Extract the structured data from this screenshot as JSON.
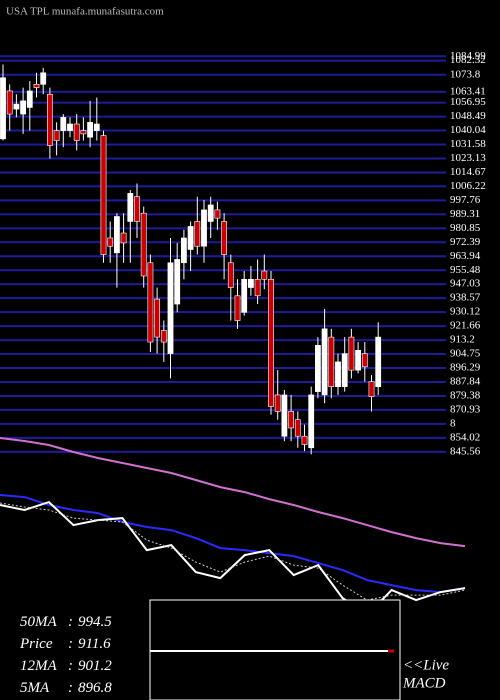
{
  "header": "USA TPL munafa.munafasutra.com",
  "chart_data": [
    {
      "type": "candlestick",
      "open": [
        1035,
        1064,
        1053,
        1050,
        1054,
        1068,
        1068,
        1062,
        1040,
        1040,
        1040,
        1044,
        1040,
        1036,
        1040,
        1037,
        975,
        966,
        978,
        985,
        1000,
        990,
        960,
        938,
        919,
        905,
        935,
        960,
        968,
        985,
        970,
        985,
        992,
        985,
        960,
        940,
        930,
        945,
        950,
        955,
        950,
        880,
        855,
        870,
        865,
        855,
        848,
        882,
        880,
        915,
        885,
        885,
        915,
        895,
        905,
        888,
        885
      ],
      "high": [
        1080,
        1068,
        1062,
        1066,
        1070,
        1075,
        1078,
        1066,
        1045,
        1050,
        1048,
        1050,
        1048,
        1058,
        1060,
        1040,
        985,
        990,
        990,
        1004,
        1008,
        994,
        965,
        945,
        925,
        975,
        972,
        980,
        985,
        1000,
        998,
        1000,
        997,
        990,
        965,
        950,
        955,
        958,
        962,
        965,
        955,
        895,
        883,
        880,
        870,
        862,
        885,
        915,
        932,
        920,
        905,
        915,
        920,
        912,
        912,
        892,
        924
      ],
      "low": [
        1034,
        1040,
        1048,
        1038,
        1040,
        1060,
        1062,
        1023,
        1025,
        1030,
        1036,
        1028,
        1034,
        1030,
        1034,
        960,
        960,
        945,
        960,
        960,
        975,
        945,
        906,
        905,
        900,
        890,
        930,
        950,
        955,
        965,
        960,
        975,
        980,
        950,
        925,
        920,
        928,
        940,
        935,
        944,
        868,
        865,
        852,
        852,
        848,
        846,
        844,
        878,
        875,
        878,
        880,
        882,
        890,
        893,
        888,
        870,
        880
      ],
      "close": [
        1072,
        1050,
        1056,
        1058,
        1064,
        1066,
        1075,
        1031,
        1034,
        1048,
        1044,
        1034,
        1038,
        1045,
        1044,
        965,
        970,
        988,
        972,
        1002,
        985,
        952,
        912,
        915,
        912,
        960,
        962,
        975,
        982,
        970,
        992,
        995,
        987,
        965,
        945,
        925,
        950,
        950,
        940,
        950,
        873,
        870,
        880,
        860,
        855,
        850,
        880,
        910,
        920,
        885,
        900,
        905,
        895,
        907,
        897,
        879,
        915
      ],
      "colors": {
        "up": "#ffffff",
        "down": "#cc0000"
      },
      "grid_color": "#1c1c9c",
      "grid": true,
      "ylim": [
        840,
        1090
      ],
      "yticks": [
        1084.99,
        1082.32,
        1073.8,
        1063.41,
        1056.95,
        1048.49,
        1040.04,
        1031.58,
        1023.13,
        1014.67,
        1006.22,
        997.76,
        989.31,
        980.85,
        972.39,
        963.94,
        955.48,
        947.03,
        938.57,
        930.12,
        921.66,
        913.2,
        904.75,
        896.29,
        887.84,
        879.38,
        870.93,
        {
          "value": 862.47,
          "label": "8"
        },
        854.02,
        845.56
      ]
    },
    {
      "type": "line",
      "ylim": [
        700,
        1220
      ],
      "series": [
        {
          "color": "#d070d0",
          "style": "solid",
          "values": [
            1204.5,
            1198.6,
            1190.9,
            1177.3,
            1165.6,
            1155.9,
            1146.2,
            1136.5,
            1122.9,
            1109.3,
            1099.6,
            1086,
            1074.4,
            1060.8,
            1049.1,
            1035.5,
            1021.9,
            1010.3,
            1000.6,
            994.8
          ]
        },
        {
          "color": "#2a2aff",
          "style": "solid",
          "values": [
            1093.8,
            1089.9,
            1074.4,
            1064.7,
            1058.8,
            1041.4,
            1031.7,
            1025.8,
            1010.3,
            990.9,
            987,
            981.2,
            975.3,
            961.7,
            948.2,
            928.7,
            919,
            909.3,
            905.4,
            913.2
          ]
        },
        {
          "color": "#ffffff",
          "style": "solid",
          "values": [
            1074.4,
            1064.7,
            1080.2,
            1035.5,
            1045.2,
            1049.1,
            987,
            996.7,
            944.3,
            932.6,
            977.3,
            987,
            938.5,
            957.9,
            893.8,
            860.8,
            909.3,
            889.9,
            905.4,
            913.2
          ]
        },
        {
          "color": "#cccccc",
          "style": "dotted",
          "values": [
            1078.3,
            1070.5,
            1064.7,
            1049.1,
            1045.2,
            1041.4,
            1006.4,
            990.9,
            963.7,
            944.3,
            963.7,
            975.3,
            957.9,
            952,
            919,
            889.9,
            899.6,
            899.6,
            899.6,
            909.3
          ]
        }
      ]
    }
  ],
  "indicators": [
    {
      "label": "50MA",
      "value": "994.5"
    },
    {
      "label": "Price",
      "value": "911.6"
    },
    {
      "label": "12MA",
      "value": "901.2"
    },
    {
      "label": "5MA",
      "value": "896.8"
    }
  ],
  "macd_label": [
    "<<Live",
    "MACD"
  ]
}
